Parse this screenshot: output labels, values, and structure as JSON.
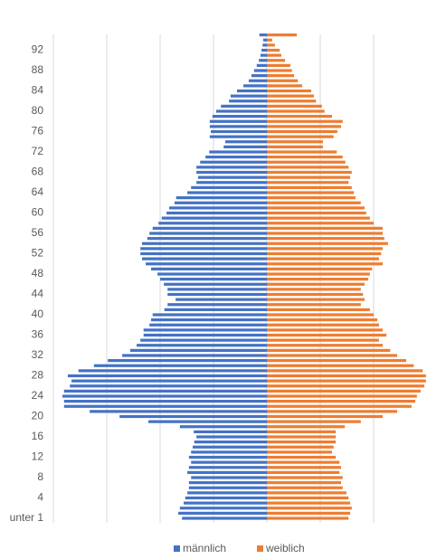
{
  "chart_data": {
    "type": "population-pyramid",
    "categories": [
      "unter 1",
      null,
      null,
      null,
      "4",
      null,
      null,
      null,
      "8",
      null,
      null,
      null,
      "12",
      null,
      null,
      null,
      "16",
      null,
      null,
      null,
      "20",
      null,
      null,
      null,
      "24",
      null,
      null,
      null,
      "28",
      null,
      null,
      null,
      "32",
      null,
      null,
      null,
      "36",
      null,
      null,
      null,
      "40",
      null,
      null,
      null,
      "44",
      null,
      null,
      null,
      "48",
      null,
      null,
      null,
      "52",
      null,
      null,
      null,
      "56",
      null,
      null,
      null,
      "60",
      null,
      null,
      null,
      "64",
      null,
      null,
      null,
      "68",
      null,
      null,
      null,
      "72",
      null,
      null,
      null,
      "76",
      null,
      null,
      null,
      "80",
      null,
      null,
      null,
      "84",
      null,
      null,
      null,
      "88",
      null,
      null,
      null,
      "92",
      null,
      null,
      null
    ],
    "series": [
      {
        "name": "männlich",
        "color": "#4472c4",
        "side": "left",
        "values": [
          159,
          166,
          163,
          156,
          153,
          149,
          146,
          146,
          142,
          149,
          146,
          142,
          146,
          142,
          139,
          136,
          132,
          137,
          163,
          222,
          276,
          332,
          380,
          380,
          383,
          380,
          369,
          366,
          373,
          353,
          324,
          298,
          271,
          256,
          244,
          237,
          231,
          231,
          220,
          217,
          214,
          192,
          186,
          171,
          186,
          186,
          193,
          200,
          205,
          217,
          227,
          234,
          237,
          237,
          234,
          224,
          220,
          214,
          203,
          197,
          188,
          183,
          173,
          170,
          149,
          142,
          132,
          129,
          132,
          132,
          125,
          115,
          108,
          81,
          78,
          107,
          105,
          107,
          107,
          102,
          95,
          86,
          71,
          68,
          56,
          44,
          34,
          29,
          24,
          19,
          15,
          12,
          10,
          8,
          7,
          14
        ]
      },
      {
        "name": "weiblich",
        "color": "#ed7d31",
        "side": "right",
        "values": [
          153,
          156,
          159,
          156,
          153,
          149,
          142,
          139,
          142,
          136,
          139,
          136,
          129,
          122,
          125,
          129,
          129,
          129,
          146,
          176,
          217,
          244,
          271,
          278,
          281,
          288,
          295,
          298,
          298,
          292,
          275,
          261,
          244,
          231,
          217,
          210,
          224,
          217,
          210,
          207,
          200,
          193,
          176,
          183,
          180,
          176,
          183,
          190,
          193,
          197,
          217,
          210,
          214,
          217,
          227,
          220,
          217,
          217,
          200,
          193,
          186,
          183,
          176,
          166,
          163,
          159,
          153,
          156,
          159,
          153,
          147,
          142,
          131,
          105,
          105,
          125,
          132,
          139,
          142,
          122,
          108,
          103,
          92,
          88,
          83,
          66,
          58,
          51,
          47,
          44,
          34,
          27,
          24,
          15,
          10,
          56
        ]
      }
    ],
    "xlim": [
      -500,
      300
    ],
    "xticks": [
      -400,
      -300,
      -200,
      -100,
      0,
      100,
      200
    ],
    "grid": true,
    "legend": "bottom"
  }
}
